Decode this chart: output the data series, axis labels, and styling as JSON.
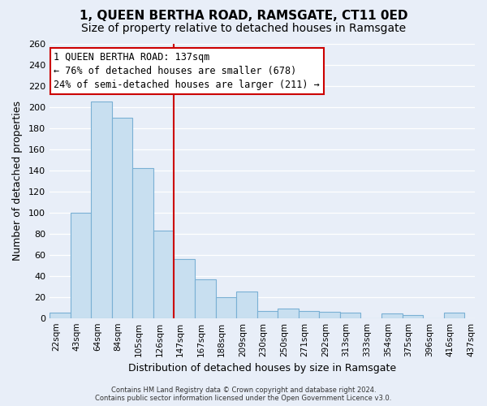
{
  "title": "1, QUEEN BERTHA ROAD, RAMSGATE, CT11 0ED",
  "subtitle": "Size of property relative to detached houses in Ramsgate",
  "xlabel": "Distribution of detached houses by size in Ramsgate",
  "ylabel": "Number of detached properties",
  "bar_labels": [
    "22sqm",
    "43sqm",
    "64sqm",
    "84sqm",
    "105sqm",
    "126sqm",
    "147sqm",
    "167sqm",
    "188sqm",
    "209sqm",
    "230sqm",
    "250sqm",
    "271sqm",
    "292sqm",
    "313sqm",
    "333sqm",
    "354sqm",
    "375sqm",
    "396sqm",
    "416sqm",
    "437sqm"
  ],
  "bar_heights": [
    5,
    100,
    205,
    190,
    142,
    83,
    56,
    37,
    20,
    25,
    7,
    9,
    7,
    6,
    5,
    0,
    4,
    3,
    0,
    5
  ],
  "bar_color": "#c8dff0",
  "bar_edge_color": "#7ab0d4",
  "vline_color": "#cc0000",
  "vline_index": 6,
  "ylim": [
    0,
    260
  ],
  "yticks": [
    0,
    20,
    40,
    60,
    80,
    100,
    120,
    140,
    160,
    180,
    200,
    220,
    240,
    260
  ],
  "annotation_title": "1 QUEEN BERTHA ROAD: 137sqm",
  "annotation_line1": "← 76% of detached houses are smaller (678)",
  "annotation_line2": "24% of semi-detached houses are larger (211) →",
  "annotation_box_facecolor": "#ffffff",
  "annotation_box_edgecolor": "#cc0000",
  "footer_line1": "Contains HM Land Registry data © Crown copyright and database right 2024.",
  "footer_line2": "Contains public sector information licensed under the Open Government Licence v3.0.",
  "background_color": "#e8eef8",
  "title_fontsize": 11,
  "subtitle_fontsize": 10
}
